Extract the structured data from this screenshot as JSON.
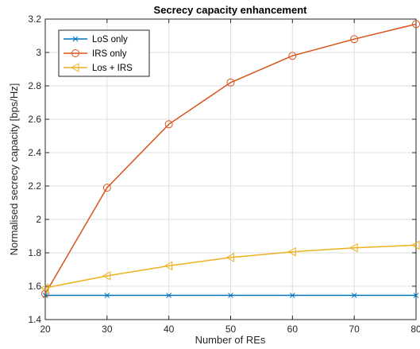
{
  "chart_data": {
    "type": "line",
    "title": "Secrecy capacity enhancement",
    "xlabel": "Number of REs",
    "ylabel": "Normalised secrecy capacity [bps/Hz]",
    "xlim": [
      20,
      80
    ],
    "ylim": [
      1.4,
      3.2
    ],
    "xticks": [
      20,
      30,
      40,
      50,
      60,
      70,
      80
    ],
    "yticks": [
      1.4,
      1.6,
      1.8,
      2,
      2.2,
      2.4,
      2.6,
      2.8,
      3,
      3.2
    ],
    "xtick_labels": [
      "20",
      "30",
      "40",
      "50",
      "60",
      "70",
      "80"
    ],
    "ytick_labels": [
      "1.4",
      "1.6",
      "1.8",
      "2",
      "2.2",
      "2.4",
      "2.6",
      "2.8",
      "3",
      "3.2"
    ],
    "grid": true,
    "legend_position": "top-left",
    "x": [
      20,
      30,
      40,
      50,
      60,
      70,
      80
    ],
    "series": [
      {
        "name": "LoS only",
        "color": "#0072BD",
        "marker": "x",
        "values": [
          1.545,
          1.545,
          1.545,
          1.545,
          1.545,
          1.545,
          1.545
        ]
      },
      {
        "name": "IRS only",
        "color": "#D95319",
        "marker": "circle",
        "values": [
          1.555,
          2.19,
          2.57,
          2.82,
          2.98,
          3.08,
          3.17
        ]
      },
      {
        "name": "Los + IRS",
        "color": "#EDB120",
        "marker": "triangle-left",
        "values": [
          1.59,
          1.662,
          1.722,
          1.772,
          1.806,
          1.83,
          1.846
        ]
      }
    ]
  }
}
